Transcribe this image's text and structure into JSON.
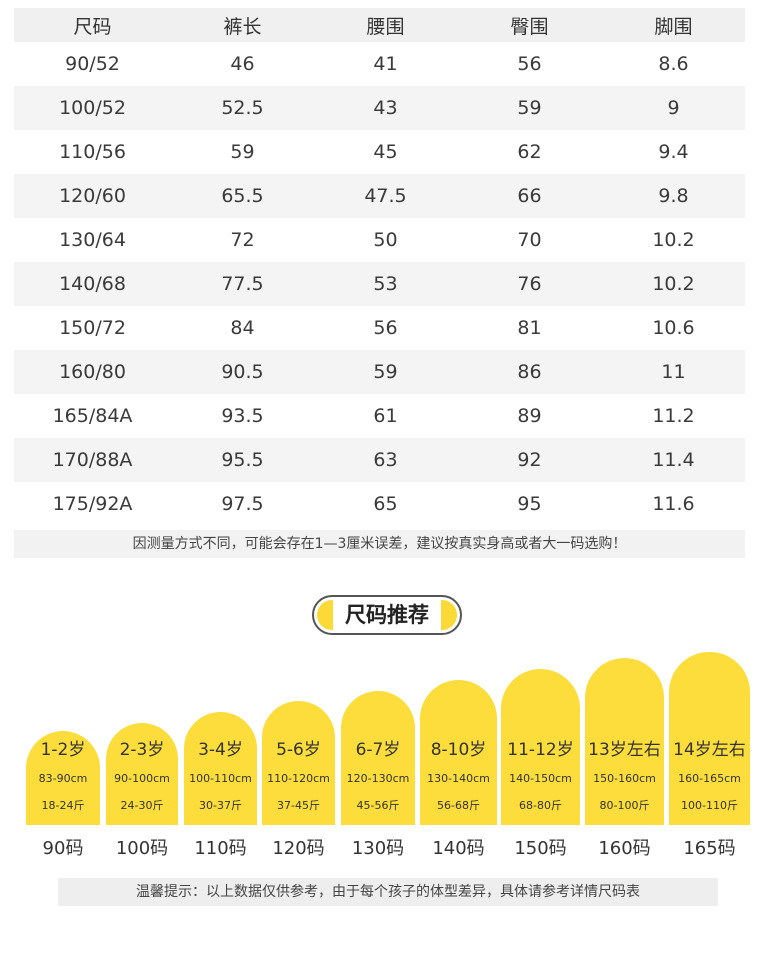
{
  "table": {
    "headers": [
      "尺码",
      "裤长",
      "腰围",
      "臀围",
      "脚围"
    ],
    "rows": [
      [
        "90/52",
        "46",
        "41",
        "56",
        "8.6"
      ],
      [
        "100/52",
        "52.5",
        "43",
        "59",
        "9"
      ],
      [
        "110/56",
        "59",
        "45",
        "62",
        "9.4"
      ],
      [
        "120/60",
        "65.5",
        "47.5",
        "66",
        "9.8"
      ],
      [
        "130/64",
        "72",
        "50",
        "70",
        "10.2"
      ],
      [
        "140/68",
        "77.5",
        "53",
        "76",
        "10.2"
      ],
      [
        "150/72",
        "84",
        "56",
        "81",
        "10.6"
      ],
      [
        "160/80",
        "90.5",
        "59",
        "86",
        "11"
      ],
      [
        "165/84A",
        "93.5",
        "61",
        "89",
        "11.2"
      ],
      [
        "170/88A",
        "95.5",
        "63",
        "92",
        "11.4"
      ],
      [
        "175/92A",
        "97.5",
        "65",
        "95",
        "11.6"
      ]
    ]
  },
  "note_measure": "因测量方式不同，可能会存在1—3厘米误差，建议按真实身高或者大一码选购！",
  "recommend": {
    "title": "尺码推荐",
    "cards": [
      {
        "age": "1-2岁",
        "height": "83-90cm",
        "weight": "18-24斤",
        "size": "90码"
      },
      {
        "age": "2-3岁",
        "height": "90-100cm",
        "weight": "24-30斤",
        "size": "100码"
      },
      {
        "age": "3-4岁",
        "height": "100-110cm",
        "weight": "30-37斤",
        "size": "110码"
      },
      {
        "age": "5-6岁",
        "height": "110-120cm",
        "weight": "37-45斤",
        "size": "120码"
      },
      {
        "age": "6-7岁",
        "height": "120-130cm",
        "weight": "45-56斤",
        "size": "130码"
      },
      {
        "age": "8-10岁",
        "height": "130-140cm",
        "weight": "56-68斤",
        "size": "140码"
      },
      {
        "age": "11-12岁",
        "height": "140-150cm",
        "weight": "68-80斤",
        "size": "150码"
      },
      {
        "age": "13岁左右",
        "height": "150-160cm",
        "weight": "80-100斤",
        "size": "160码"
      },
      {
        "age": "14岁左右",
        "height": "160-165cm",
        "weight": "100-110斤",
        "size": "165码"
      }
    ]
  },
  "note_tip": "温馨提示：以上数据仅供参考，由于每个孩子的体型差异，具体请参考详情尺码表",
  "colors": {
    "card_yellow": "#fddd3c",
    "header_gray": "#f0f0f0"
  }
}
